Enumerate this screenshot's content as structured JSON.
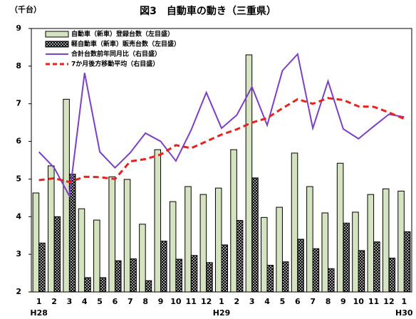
{
  "chart_data": {
    "type": "bar-line",
    "title": "図3　自動車の動き（三重県）",
    "y_label": "（千台）",
    "categories": [
      "1",
      "2",
      "3",
      "4",
      "5",
      "6",
      "7",
      "8",
      "9",
      "10",
      "11",
      "12",
      "1",
      "2",
      "3",
      "4",
      "5",
      "6",
      "7",
      "8",
      "9",
      "10",
      "11",
      "12",
      "1"
    ],
    "category_groups": [
      "H28",
      null,
      null,
      null,
      null,
      null,
      null,
      null,
      null,
      null,
      null,
      null,
      "H29",
      null,
      null,
      null,
      null,
      null,
      null,
      null,
      null,
      null,
      null,
      null,
      "H30"
    ],
    "ylim": [
      2,
      9
    ],
    "yticks": [
      2,
      3,
      4,
      5,
      6,
      7,
      8,
      9
    ],
    "series": [
      {
        "name": "自動車（新車）登録台数（左目盛）",
        "kind": "bar",
        "color": "#d6e3c0",
        "values": [
          4.63,
          5.35,
          7.12,
          4.21,
          3.91,
          5.06,
          4.99,
          3.8,
          5.78,
          4.4,
          4.8,
          4.59,
          4.76,
          5.78,
          8.3,
          3.98,
          4.25,
          5.69,
          4.8,
          4.1,
          5.42,
          4.12,
          4.59,
          4.74,
          4.68
        ]
      },
      {
        "name": "軽自動車（新車）販売台数（左目盛）",
        "kind": "bar",
        "color": "#000000",
        "hatched": true,
        "values": [
          3.3,
          4.0,
          5.13,
          2.38,
          2.38,
          2.83,
          2.88,
          2.3,
          3.35,
          2.87,
          2.97,
          2.78,
          3.25,
          3.9,
          5.03,
          2.71,
          2.8,
          3.4,
          3.15,
          2.62,
          3.83,
          3.1,
          3.33,
          2.9,
          3.6
        ]
      },
      {
        "name": "合計台数前年同月比（右目盛）",
        "kind": "line",
        "color": "#7b3fc8",
        "values": [
          5.72,
          5.3,
          4.55,
          7.82,
          5.72,
          5.3,
          5.7,
          6.22,
          6.0,
          5.48,
          6.3,
          7.3,
          6.35,
          6.7,
          7.45,
          6.43,
          7.88,
          8.32,
          6.35,
          7.6,
          6.33,
          6.07,
          6.4,
          6.72,
          6.65
        ]
      },
      {
        "name": "7か月後方移動平均（右目盛）",
        "kind": "line",
        "color": "#e8231f",
        "dashed": true,
        "values": [
          4.97,
          5.02,
          4.92,
          5.06,
          5.05,
          5.0,
          5.47,
          5.53,
          5.65,
          5.9,
          5.82,
          6.0,
          6.18,
          6.32,
          6.5,
          6.62,
          6.88,
          7.12,
          7.0,
          7.15,
          7.1,
          6.93,
          6.92,
          6.77,
          6.6
        ]
      }
    ]
  }
}
